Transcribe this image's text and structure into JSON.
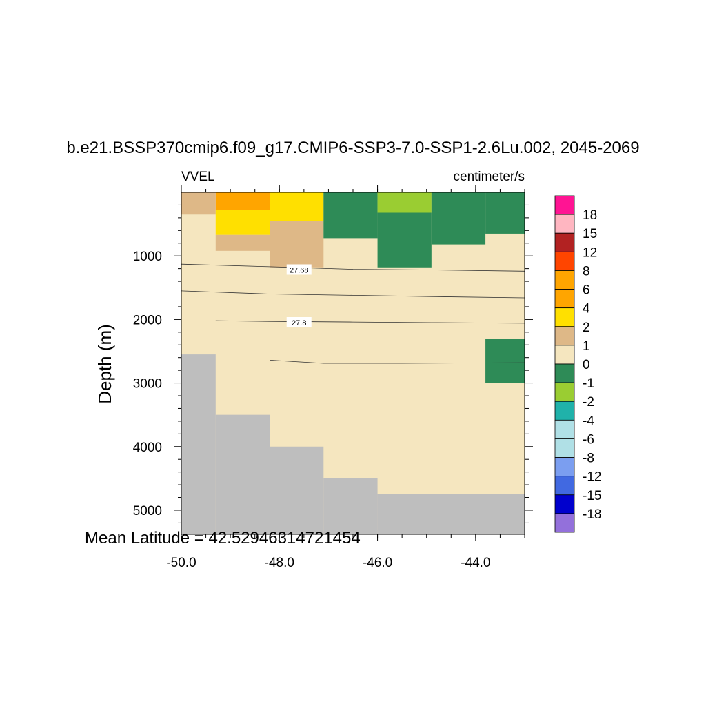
{
  "chart_data": {
    "type": "heatmap",
    "title": "b.e21.BSSP370cmip6.f09_g17.CMIP6-SSP3-7.0-SSP1-2.6Lu.002, 2045-2069",
    "left_string": "VVEL",
    "right_string": "centimeter/s",
    "xlabel": "",
    "ylabel": "Depth (m)",
    "xlim": [
      -50.0,
      -43.0
    ],
    "ylim": [
      5380,
      0
    ],
    "x_ticks": [
      -50.0,
      -48.0,
      -46.0,
      -44.0
    ],
    "x_tick_labels": [
      "-50.0",
      "-48.0",
      "-46.0",
      "-44.0"
    ],
    "y_ticks": [
      1000,
      2000,
      3000,
      4000,
      5000
    ],
    "y_tick_labels": [
      "1000",
      "2000",
      "3000",
      "4000",
      "5000"
    ],
    "annotation": "Mean Latitude = 42.52946314721454",
    "missing_color": "#bebebe",
    "background_class": "0",
    "cells": [
      {
        "x0": -49.3,
        "x1": -48.2,
        "z0": 0,
        "z1": 280,
        "cls": "4"
      },
      {
        "x0": -50.0,
        "x1": -49.3,
        "z0": 0,
        "z1": 350,
        "cls": "1"
      },
      {
        "x0": -49.3,
        "x1": -48.2,
        "z0": 280,
        "z1": 670,
        "cls": "2"
      },
      {
        "x0": -48.2,
        "x1": -47.1,
        "z0": 0,
        "z1": 450,
        "cls": "2"
      },
      {
        "x0": -49.3,
        "x1": -48.2,
        "z0": 670,
        "z1": 920,
        "cls": "1"
      },
      {
        "x0": -48.2,
        "x1": -47.1,
        "z0": 450,
        "z1": 1180,
        "cls": "1"
      },
      {
        "x0": -47.1,
        "x1": -46.0,
        "z0": 0,
        "z1": 720,
        "cls": "-1"
      },
      {
        "x0": -46.0,
        "x1": -44.9,
        "z0": 0,
        "z1": 320,
        "cls": "-2"
      },
      {
        "x0": -46.0,
        "x1": -44.9,
        "z0": 320,
        "z1": 1180,
        "cls": "-1"
      },
      {
        "x0": -44.9,
        "x1": -43.8,
        "z0": 0,
        "z1": 820,
        "cls": "-1"
      },
      {
        "x0": -43.8,
        "x1": -43.0,
        "z0": 0,
        "z1": 650,
        "cls": "-1"
      },
      {
        "x0": -43.8,
        "x1": -43.0,
        "z0": 2300,
        "z1": 3000,
        "cls": "-1"
      }
    ],
    "missing_cells": [
      {
        "x0": -50.0,
        "x1": -49.3,
        "z0": 2550,
        "z1": 5380
      },
      {
        "x0": -49.3,
        "x1": -48.2,
        "z0": 3500,
        "z1": 5380
      },
      {
        "x0": -48.2,
        "x1": -47.1,
        "z0": 4000,
        "z1": 5380
      },
      {
        "x0": -47.1,
        "x1": -46.0,
        "z0": 4500,
        "z1": 5380
      },
      {
        "x0": -46.0,
        "x1": -43.0,
        "z0": 4750,
        "z1": 5380
      }
    ],
    "contours": [
      {
        "label": "27.68",
        "label_at": [
          -47.6,
          1220
        ],
        "points": [
          [
            -50.0,
            1130
          ],
          [
            -48.2,
            1170
          ],
          [
            -46.5,
            1210
          ],
          [
            -44.9,
            1220
          ],
          [
            -43.0,
            1240
          ]
        ]
      },
      {
        "label": "",
        "label_at": null,
        "points": [
          [
            -50.0,
            1550
          ],
          [
            -48.2,
            1600
          ],
          [
            -46.5,
            1620
          ],
          [
            -44.9,
            1640
          ],
          [
            -43.0,
            1660
          ]
        ]
      },
      {
        "label": "27.8",
        "label_at": [
          -47.6,
          2050
        ],
        "points": [
          [
            -49.3,
            2020
          ],
          [
            -48.2,
            2030
          ],
          [
            -46.5,
            2040
          ],
          [
            -44.9,
            2050
          ],
          [
            -43.0,
            2060
          ]
        ]
      },
      {
        "label": "",
        "label_at": null,
        "points": [
          [
            -48.2,
            2640
          ],
          [
            -47.1,
            2690
          ],
          [
            -45.5,
            2690
          ],
          [
            -43.0,
            2680
          ]
        ]
      }
    ],
    "colorbar": {
      "labels": [
        "18",
        "15",
        "12",
        "8",
        "6",
        "4",
        "2",
        "1",
        "0",
        "-1",
        "-2",
        "-4",
        "-6",
        "-8",
        "-12",
        "-15",
        "-18"
      ],
      "colors": [
        "#ff1493",
        "#ffb6c1",
        "#b22222",
        "#ff4500",
        "#ffa500",
        "#ffa500",
        "#ffe000",
        "#deb887",
        "#f5e6bf",
        "#2e8b57",
        "#9acd32",
        "#20b2aa",
        "#b0e0e6",
        "#b0e0e6",
        "#7b9ef0",
        "#4169e1",
        "#0000cd",
        "#9370db"
      ]
    },
    "class_colors": {
      "4": "#ffa500",
      "2": "#ffe000",
      "1": "#deb887",
      "0": "#f5e6bf",
      "-1": "#2e8b57",
      "-2": "#9acd32"
    }
  }
}
